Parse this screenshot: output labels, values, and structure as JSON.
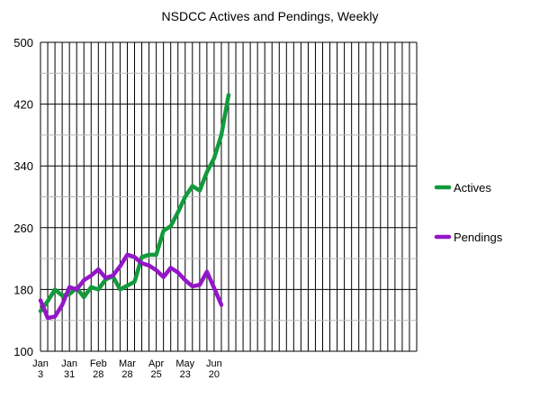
{
  "chart_data": {
    "type": "line",
    "title": "NSDCC Actives and Pendings, Weekly",
    "xlabel": "",
    "ylabel": "",
    "ylim": [
      100,
      500
    ],
    "yticks": [
      100,
      180,
      260,
      340,
      420,
      500
    ],
    "x_tick_labels": [
      {
        "line1": "Jan",
        "line2": "3"
      },
      {
        "line1": "Jan",
        "line2": "31"
      },
      {
        "line1": "Feb",
        "line2": "28"
      },
      {
        "line1": "Mar",
        "line2": "28"
      },
      {
        "line1": "Apr",
        "line2": "25"
      },
      {
        "line1": "May",
        "line2": "23"
      },
      {
        "line1": "Jun",
        "line2": "20"
      }
    ],
    "weeks_total": 52,
    "grid": true,
    "legend_position": "right",
    "series": [
      {
        "name": "Actives",
        "color": "#129a3c",
        "values": [
          152,
          165,
          180,
          172,
          174,
          182,
          170,
          183,
          180,
          193,
          197,
          180,
          185,
          190,
          222,
          225,
          225,
          256,
          262,
          280,
          300,
          314,
          308,
          332,
          350,
          380,
          432
        ]
      },
      {
        "name": "Pendings",
        "color": "#9416c8",
        "values": [
          166,
          143,
          145,
          160,
          183,
          180,
          192,
          198,
          206,
          195,
          198,
          210,
          225,
          222,
          214,
          211,
          205,
          196,
          208,
          202,
          192,
          184,
          186,
          203,
          182,
          160
        ]
      }
    ]
  }
}
